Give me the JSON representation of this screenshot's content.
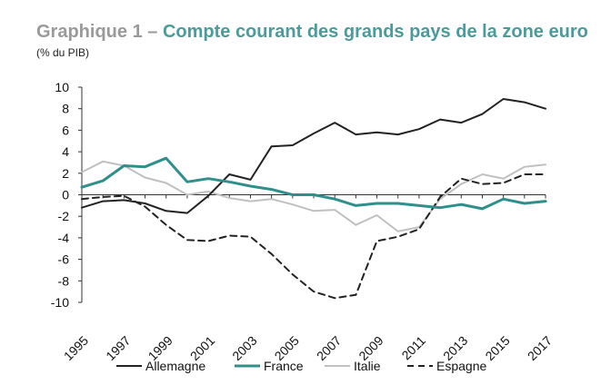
{
  "title_prefix": "Graphique 1 – ",
  "title_main": "Compte courant des grands pays de la zone euro",
  "subtitle": "(% du PIB)",
  "chart_data": {
    "type": "line",
    "title": "Graphique 1 – Compte courant des grands pays de la zone euro",
    "ylabel": "(% du PIB)",
    "xlabel": "",
    "ylim": [
      -10,
      10
    ],
    "yticks": [
      10,
      8,
      6,
      4,
      2,
      0,
      -2,
      -4,
      -6,
      -8,
      -10
    ],
    "x": [
      1995,
      1996,
      1997,
      1998,
      1999,
      2000,
      2001,
      2002,
      2003,
      2004,
      2005,
      2006,
      2007,
      2008,
      2009,
      2010,
      2011,
      2012,
      2013,
      2014,
      2015,
      2016,
      2017
    ],
    "xticklabels": [
      "1995",
      "1997",
      "1999",
      "2001",
      "2003",
      "2005",
      "2007",
      "2009",
      "2011",
      "2013",
      "2015",
      "2017"
    ],
    "grid": false,
    "legend_position": "bottom",
    "series": [
      {
        "name": "Allemagne",
        "color": "#222222",
        "dash": "solid",
        "values": [
          -1.2,
          -0.6,
          -0.5,
          -0.8,
          -1.5,
          -1.7,
          -0.1,
          1.9,
          1.4,
          4.5,
          4.6,
          5.7,
          6.7,
          5.6,
          5.8,
          5.6,
          6.1,
          7.0,
          6.7,
          7.5,
          8.9,
          8.6,
          8.0
        ]
      },
      {
        "name": "France",
        "color": "#2f8f8a",
        "dash": "solid",
        "values": [
          0.7,
          1.3,
          2.7,
          2.6,
          3.4,
          1.2,
          1.5,
          1.2,
          0.8,
          0.5,
          0.0,
          0.0,
          -0.4,
          -1.0,
          -0.8,
          -0.8,
          -1.0,
          -1.2,
          -0.9,
          -1.3,
          -0.4,
          -0.8,
          -0.6
        ]
      },
      {
        "name": "Italie",
        "color": "#c0c0c0",
        "dash": "solid",
        "values": [
          2.1,
          3.1,
          2.7,
          1.6,
          1.1,
          0.0,
          0.3,
          -0.3,
          -0.6,
          -0.4,
          -0.9,
          -1.5,
          -1.4,
          -2.8,
          -1.9,
          -3.4,
          -3.0,
          -0.4,
          1.0,
          1.9,
          1.5,
          2.6,
          2.8
        ]
      },
      {
        "name": "Espagne",
        "color": "#222222",
        "dash": "dashed",
        "values": [
          -0.4,
          -0.2,
          -0.1,
          -1.1,
          -2.8,
          -4.2,
          -4.3,
          -3.8,
          -3.9,
          -5.5,
          -7.4,
          -9.0,
          -9.6,
          -9.3,
          -4.3,
          -3.9,
          -3.2,
          -0.2,
          1.5,
          1.0,
          1.1,
          1.9,
          1.9
        ]
      }
    ]
  }
}
